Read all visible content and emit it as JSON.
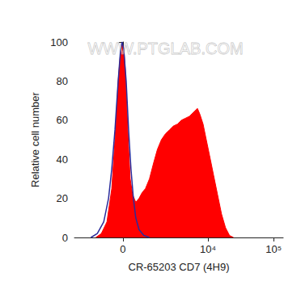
{
  "chart_data": {
    "type": "line",
    "x_label": "CR-65203 CD7 (4H9)",
    "y_label": "Relative cell number",
    "annotations": [
      "WWW.PTGLAB.COM"
    ],
    "xlim": [
      -2700,
      140000
    ],
    "xticks": [
      0,
      {
        "value": 10000,
        "label": "10⁴"
      },
      {
        "value": 100000,
        "label": "10⁵"
      }
    ],
    "ylim": [
      0,
      100
    ],
    "yticks": [
      0,
      20,
      40,
      60,
      80,
      100
    ],
    "grid": false,
    "series": [
      {
        "type": "area",
        "color": "#ff0000",
        "x": [
          -1128,
          -850,
          -604,
          -411,
          -290,
          -172,
          -86,
          -29,
          29,
          86,
          172,
          261,
          350,
          474,
          604,
          740,
          889,
          1089,
          1314,
          1550,
          1828,
          2142,
          2498,
          2897,
          3366,
          3896,
          4498,
          5192,
          5987,
          6905,
          7528,
          8425,
          9425,
          10567,
          12158,
          13994,
          16116,
          18544,
          21338,
          24551
        ],
        "values": [
          0,
          2,
          8,
          25,
          50,
          80,
          95,
          99,
          97,
          85,
          55,
          30,
          22,
          18,
          20,
          23,
          25,
          30,
          38,
          45,
          50,
          53,
          55,
          57,
          58,
          60,
          61,
          62,
          64,
          66,
          63,
          58,
          50,
          42,
          32,
          22,
          12,
          5,
          1,
          0
        ]
      },
      {
        "type": "line",
        "color": "#2b2b9a",
        "x": [
          -1401,
          -1046,
          -740,
          -538,
          -411,
          -290,
          -172,
          -86,
          -29,
          29,
          115,
          202,
          290,
          381,
          474,
          604,
          813,
          1089
        ],
        "values": [
          0,
          2,
          8,
          20,
          35,
          55,
          80,
          96,
          100,
          96,
          80,
          55,
          35,
          20,
          10,
          4,
          1,
          0
        ]
      }
    ]
  }
}
